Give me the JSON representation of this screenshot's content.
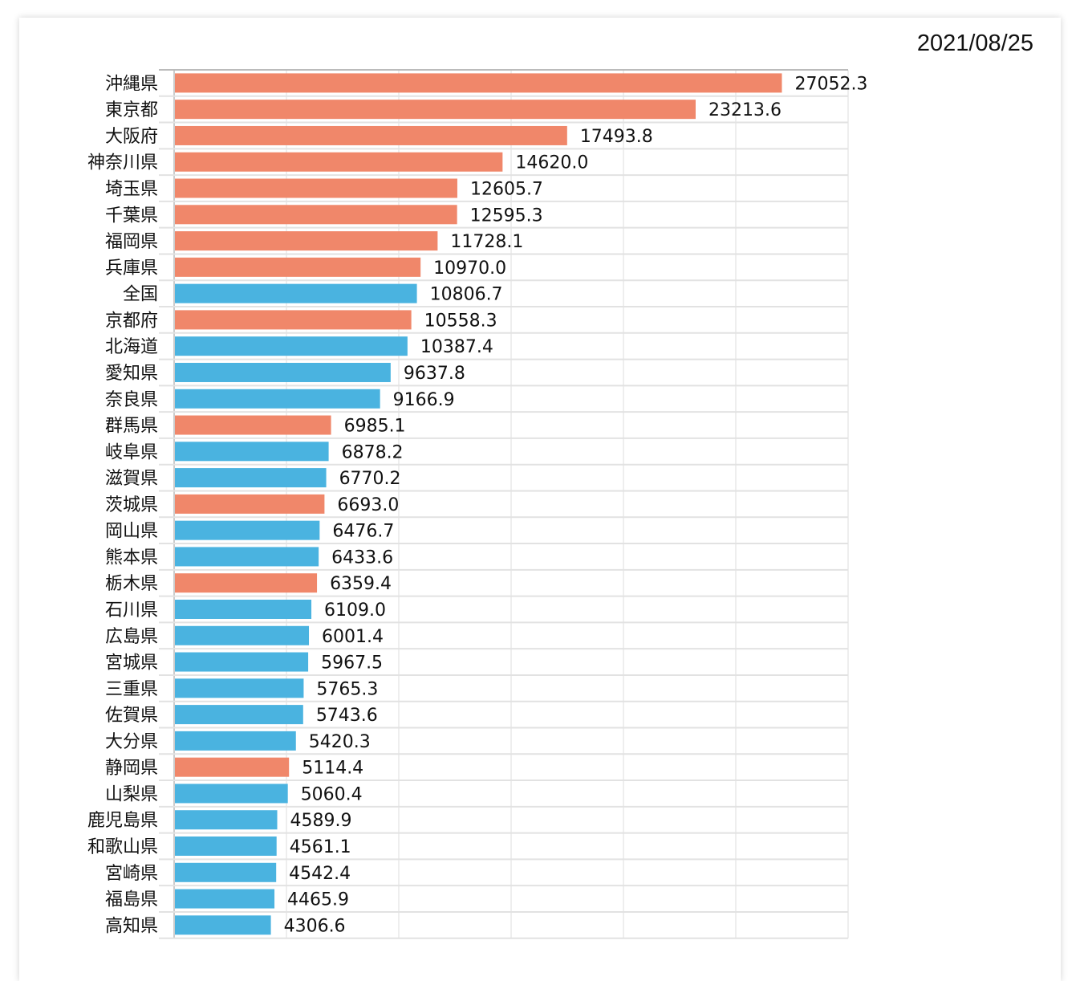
{
  "date": "2021/08/25",
  "chart_data": {
    "type": "bar",
    "orientation": "horizontal",
    "title": "",
    "xlabel": "",
    "ylabel": "",
    "xlim": [
      0,
      30000
    ],
    "grid": true,
    "colors": {
      "highlight": "#f0876a",
      "normal": "#4ab3e0"
    },
    "categories": [
      "沖縄県",
      "東京都",
      "大阪府",
      "神奈川県",
      "埼玉県",
      "千葉県",
      "福岡県",
      "兵庫県",
      "全国",
      "京都府",
      "北海道",
      "愛知県",
      "奈良県",
      "群馬県",
      "岐阜県",
      "滋賀県",
      "茨城県",
      "岡山県",
      "熊本県",
      "栃木県",
      "石川県",
      "広島県",
      "宮城県",
      "三重県",
      "佐賀県",
      "大分県",
      "静岡県",
      "山梨県",
      "鹿児島県",
      "和歌山県",
      "宮崎県",
      "福島県",
      "高知県"
    ],
    "values": [
      27052.3,
      23213.6,
      17493.8,
      14620.0,
      12605.7,
      12595.3,
      11728.1,
      10970.0,
      10806.7,
      10558.3,
      10387.4,
      9637.8,
      9166.9,
      6985.1,
      6878.2,
      6770.2,
      6693.0,
      6476.7,
      6433.6,
      6359.4,
      6109.0,
      6001.4,
      5967.5,
      5765.3,
      5743.6,
      5420.3,
      5114.4,
      5060.4,
      4589.9,
      4561.1,
      4542.4,
      4465.9,
      4306.6
    ],
    "value_labels": [
      "27052.3",
      "23213.6",
      "17493.8",
      "14620.0",
      "12605.7",
      "12595.3",
      "11728.1",
      "10970.0",
      "10806.7",
      "10558.3",
      "10387.4",
      "9637.8",
      "9166.9",
      "6985.1",
      "6878.2",
      "6770.2",
      "6693.0",
      "6476.7",
      "6433.6",
      "6359.4",
      "6109.0",
      "6001.4",
      "5967.5",
      "5765.3",
      "5743.6",
      "5420.3",
      "5114.4",
      "5060.4",
      "4589.9",
      "4561.1",
      "4542.4",
      "4465.9",
      "4306.6"
    ],
    "bar_color": [
      "highlight",
      "highlight",
      "highlight",
      "highlight",
      "highlight",
      "highlight",
      "highlight",
      "highlight",
      "normal",
      "highlight",
      "normal",
      "normal",
      "normal",
      "highlight",
      "normal",
      "normal",
      "highlight",
      "normal",
      "normal",
      "highlight",
      "normal",
      "normal",
      "normal",
      "normal",
      "normal",
      "normal",
      "highlight",
      "normal",
      "normal",
      "normal",
      "normal",
      "normal",
      "normal"
    ]
  }
}
